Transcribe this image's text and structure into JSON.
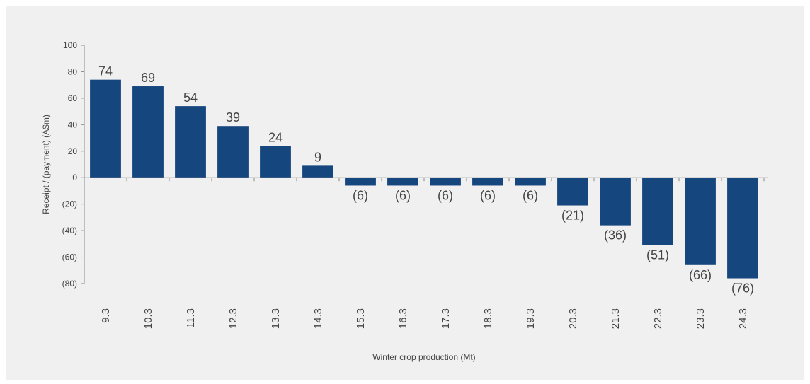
{
  "chart_data": {
    "type": "bar",
    "categories": [
      "9.3",
      "10.3",
      "11.3",
      "12.3",
      "13.3",
      "14.3",
      "15.3",
      "16.3",
      "17.3",
      "18.3",
      "19.3",
      "20.3",
      "21.3",
      "22.3",
      "23.3",
      "24.3"
    ],
    "values": [
      74,
      69,
      54,
      39,
      24,
      9,
      -6,
      -6,
      -6,
      -6,
      -6,
      -21,
      -36,
      -51,
      -66,
      -76
    ],
    "data_labels": [
      "74",
      "69",
      "54",
      "39",
      "24",
      "9",
      "(6)",
      "(6)",
      "(6)",
      "(6)",
      "(6)",
      "(21)",
      "(36)",
      "(51)",
      "(66)",
      "(76)"
    ],
    "title": "",
    "xlabel": "Winter crop production (Mt)",
    "ylabel": "Receipt / (payment) (A$m)",
    "ylim": [
      -80,
      100
    ],
    "yticks": [
      100,
      80,
      60,
      40,
      20,
      0,
      -20,
      -40,
      -60,
      -80
    ],
    "ytick_labels": [
      "100",
      "80",
      "60",
      "40",
      "20",
      "0",
      "(20)",
      "(40)",
      "(60)",
      "(80)"
    ],
    "grid": false,
    "legend": "none",
    "bar_color": "#16467e",
    "axis_color": "#8c8c8c",
    "background_color": "#f0f0f0"
  }
}
